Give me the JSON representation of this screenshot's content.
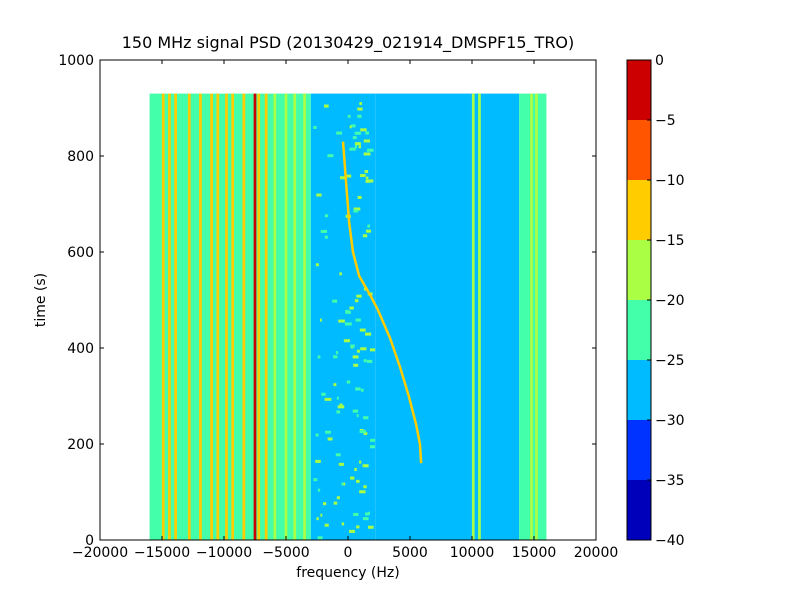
{
  "chart_data": {
    "type": "heatmap",
    "title": "150 MHz signal PSD (20130429_021914_DMSPF15_TRO)",
    "xlabel": "frequency (Hz)",
    "ylabel": "time (s)",
    "xlim": [
      -20000,
      20000
    ],
    "ylim": [
      0,
      1000
    ],
    "x_ticks": [
      -20000,
      -15000,
      -10000,
      -5000,
      0,
      5000,
      10000,
      15000,
      20000
    ],
    "x_tick_labels": [
      "−20000",
      "−15000",
      "−10000",
      "−5000",
      "0",
      "5000",
      "10000",
      "15000",
      "20000"
    ],
    "y_ticks": [
      0,
      200,
      400,
      600,
      800,
      1000
    ],
    "y_tick_labels": [
      "0",
      "200",
      "400",
      "600",
      "800",
      "1000"
    ],
    "data_extent": {
      "freq_min": -16000,
      "freq_max": 16000,
      "time_min": 0,
      "time_max": 930
    },
    "colorbar": {
      "range": [
        -40,
        0
      ],
      "levels": [
        -40,
        -35,
        -30,
        -25,
        -20,
        -15,
        -10,
        -5,
        0
      ],
      "tick_labels": [
        "−40",
        "−35",
        "−30",
        "−25",
        "−20",
        "−15",
        "−10",
        "−5",
        "0"
      ],
      "colors": [
        "#0000bb",
        "#0033ff",
        "#00bbff",
        "#44ffaa",
        "#aaff44",
        "#ffcc00",
        "#ff5500",
        "#cc0000"
      ]
    },
    "doppler_trace": {
      "points": [
        [
          -400,
          830
        ],
        [
          -200,
          760
        ],
        [
          100,
          660
        ],
        [
          400,
          600
        ],
        [
          900,
          550
        ],
        [
          1800,
          510
        ],
        [
          2400,
          480
        ],
        [
          3400,
          420
        ],
        [
          4200,
          360
        ],
        [
          4900,
          300
        ],
        [
          5500,
          240
        ],
        [
          5800,
          200
        ],
        [
          5900,
          160
        ]
      ]
    },
    "spectral_lines": [
      {
        "freq": -14900,
        "level": -15
      },
      {
        "freq": -14400,
        "level": -15
      },
      {
        "freq": -13900,
        "level": -15
      },
      {
        "freq": -12800,
        "level": -13
      },
      {
        "freq": -11900,
        "level": -13
      },
      {
        "freq": -11000,
        "level": -12
      },
      {
        "freq": -10500,
        "level": -15
      },
      {
        "freq": -9800,
        "level": -15
      },
      {
        "freq": -9300,
        "level": -15
      },
      {
        "freq": -8400,
        "level": -15
      },
      {
        "freq": -7500,
        "level": -2
      },
      {
        "freq": -7200,
        "level": -12
      },
      {
        "freq": -6600,
        "level": -15
      },
      {
        "freq": -5900,
        "level": -17
      },
      {
        "freq": -5000,
        "level": -20
      },
      {
        "freq": -4300,
        "level": -18
      },
      {
        "freq": -3500,
        "level": -20
      },
      {
        "freq": 10100,
        "level": -20
      },
      {
        "freq": 10600,
        "level": -18
      },
      {
        "freq": 14800,
        "level": -20
      },
      {
        "freq": 15200,
        "level": -18
      }
    ],
    "grid": false
  }
}
